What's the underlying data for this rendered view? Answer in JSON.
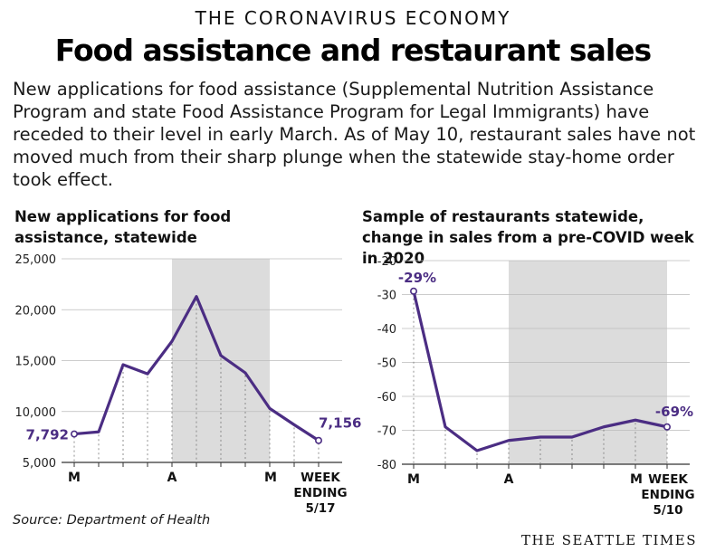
{
  "header": {
    "kicker": "THE CORONAVIRUS ECONOMY",
    "headline": "Food assistance and restaurant sales",
    "dek": "New applications for food assistance (Supplemental Nutrition Assistance Program and state Food Assistance Program for Legal Immigrants) have receded to their level in early March. As of May 10, restaurant sales have not moved much from their sharp plunge when the statewide stay-home order took effect."
  },
  "footer": {
    "source": "Source: Department of Health",
    "brand": "THE SEATTLE TIMES"
  },
  "colors": {
    "series": "#4b2d83",
    "shade": "#dcdcdc",
    "grid": "#bbbbbb",
    "axis": "#333333"
  },
  "chart_data": [
    {
      "type": "line",
      "title": "New applications for food assistance, statewide",
      "x_tick_labels": [
        "M",
        "A",
        "M"
      ],
      "x_end_label": [
        "WEEK",
        "ENDING",
        "5/17"
      ],
      "ylim": [
        5000,
        25000
      ],
      "y_ticks": [
        5000,
        10000,
        15000,
        20000,
        25000
      ],
      "y_tick_labels": [
        "5,000",
        "10,000",
        "15,000",
        "20,000",
        "25,000"
      ],
      "shaded_range": [
        4,
        8
      ],
      "grid": "dotted vertical guides under each point",
      "series": [
        {
          "values": [
            7792,
            8000,
            14600,
            13700,
            16900,
            21300,
            15500,
            13800,
            10300,
            8700,
            7156
          ]
        }
      ],
      "annotations": [
        {
          "index": 0,
          "text": "7,792"
        },
        {
          "index": 10,
          "text": "7,156"
        }
      ]
    },
    {
      "type": "line",
      "title": "Sample of restaurants statewide, change in sales from a pre-COVID week in 2020",
      "x_tick_labels": [
        "M",
        "A",
        "M"
      ],
      "x_end_label": [
        "WEEK",
        "ENDING",
        "5/10"
      ],
      "ylim": [
        -80,
        -20
      ],
      "y_ticks": [
        -80,
        -70,
        -60,
        -50,
        -40,
        -30,
        -20
      ],
      "y_tick_labels": [
        "-80",
        "-70",
        "-60",
        "-50",
        "-40",
        "-30",
        "-20"
      ],
      "shaded_range": [
        3,
        8
      ],
      "grid": "dotted vertical guides under each point",
      "series": [
        {
          "values": [
            -29,
            -69,
            -76,
            -73,
            -72,
            -72,
            -69,
            -67,
            -69
          ]
        }
      ],
      "annotations": [
        {
          "index": 0,
          "text": "-29%"
        },
        {
          "index": 8,
          "text": "-69%"
        }
      ]
    }
  ]
}
